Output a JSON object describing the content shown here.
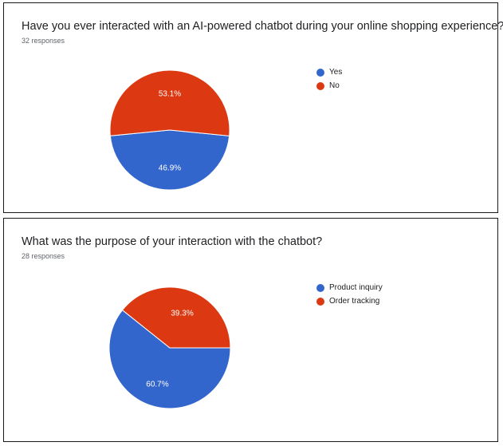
{
  "chart_data": [
    {
      "type": "pie",
      "title": "Have you ever interacted with an AI-powered chatbot during your online shopping experience?",
      "subtitle": "32 responses",
      "categories": [
        "Yes",
        "No"
      ],
      "values": [
        46.9,
        53.1
      ],
      "labels": [
        "46.9%",
        "53.1%"
      ],
      "colors": [
        "#3366cc",
        "#dc3912"
      ],
      "legend": "right"
    },
    {
      "type": "pie",
      "title": "What was the purpose of your interaction with the chatbot?",
      "subtitle": "28 responses",
      "categories": [
        "Product inquiry",
        "Order tracking"
      ],
      "values": [
        60.7,
        39.3
      ],
      "labels": [
        "60.7%",
        "39.3%"
      ],
      "colors": [
        "#3366cc",
        "#dc3912"
      ],
      "legend": "right"
    }
  ]
}
